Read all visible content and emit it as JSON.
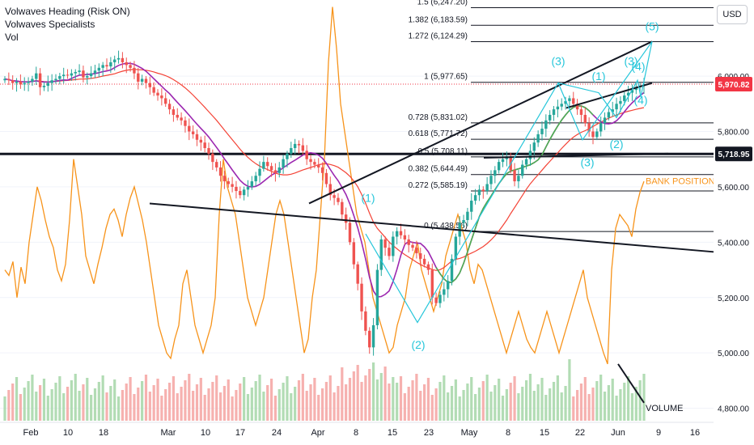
{
  "legend": {
    "line1": "Volwaves Heading (Risk ON)",
    "line2": "Volwaves Specialists",
    "line3": "Vol"
  },
  "currency": "USD",
  "colors": {
    "up": "#26a69a",
    "down": "#ef5350",
    "ma_fast": "#4caf50",
    "ma_slow": "#f44336",
    "ma_mid": "#9c27b0",
    "vol_line": "#f7931a",
    "wave": "#26c6da",
    "price_tag": "#f23645",
    "level_tag": "#131722"
  },
  "chart_data": {
    "type": "candlestick",
    "symbol_price": 5970.82,
    "y_axis": {
      "ticks": [
        "6,000.00",
        "5,800.00",
        "5,600.00",
        "5,400.00",
        "5,200.00",
        "5,000.00",
        "4,800.00"
      ],
      "tick_values": [
        6000,
        5800,
        5600,
        5400,
        5200,
        5000,
        4800
      ],
      "ylim": [
        4755,
        6275
      ]
    },
    "x_axis": {
      "ticks": [
        "Feb",
        "10",
        "18",
        "Mar",
        "10",
        "17",
        "24",
        "Apr",
        "8",
        "15",
        "23",
        "May",
        "8",
        "15",
        "22",
        "Jun",
        "9",
        "16"
      ]
    },
    "price_tags": [
      {
        "label": "5,970.82",
        "value": 5970.82,
        "style": "red"
      },
      {
        "label": "5,718.95",
        "value": 5718.95,
        "style": "dark"
      }
    ],
    "fib_levels": [
      {
        "label": "1.5 (6,247.20)",
        "value": 6247.2
      },
      {
        "label": "1.382 (6,183.59)",
        "value": 6183.59
      },
      {
        "label": "1.272 (6,124.29)",
        "value": 6124.29
      },
      {
        "label": "1 (5,977.65)",
        "value": 5977.65
      },
      {
        "label": "0.728 (5,831.02)",
        "value": 5831.02
      },
      {
        "label": "0.618 (5,771.72)",
        "value": 5771.72
      },
      {
        "label": "0.5 (5,708.11)",
        "value": 5708.11
      },
      {
        "label": "0.382 (5,644.49)",
        "value": 5644.49
      },
      {
        "label": "0.272 (5,585.19)",
        "value": 5585.19
      },
      {
        "label": "0 (5,438.56)",
        "value": 5438.56
      }
    ],
    "wave_labels": [
      "(1)",
      "(2)",
      "(3)",
      "(1)",
      "(2)",
      "(3)",
      "(4)",
      "(3)",
      "(4)",
      "(5)"
    ],
    "annotations": [
      "BANK POSITIONS",
      "VOLUME"
    ],
    "closes": [
      5990,
      5985,
      5975,
      5980,
      5970,
      5975,
      5980,
      5990,
      6010,
      5960,
      5965,
      5975,
      5985,
      5990,
      6000,
      6005,
      6002,
      6010,
      6015,
      6020,
      5995,
      6000,
      6010,
      6020,
      6030,
      6040,
      6035,
      6050,
      6060,
      6065,
      6050,
      6040,
      6030,
      6010,
      5980,
      5990,
      5975,
      5960,
      5940,
      5930,
      5920,
      5900,
      5880,
      5860,
      5850,
      5840,
      5820,
      5800,
      5790,
      5770,
      5760,
      5740,
      5720,
      5690,
      5670,
      5640,
      5620,
      5610,
      5600,
      5585,
      5570,
      5590,
      5600,
      5620,
      5640,
      5665,
      5690,
      5675,
      5660,
      5650,
      5670,
      5700,
      5720,
      5740,
      5755,
      5750,
      5730,
      5700,
      5690,
      5680,
      5670,
      5650,
      5610,
      5570,
      5560,
      5545,
      5500,
      5470,
      5400,
      5320,
      5250,
      5150,
      5080,
      5020,
      5100,
      5300,
      5410,
      5380,
      5350,
      5420,
      5440,
      5425,
      5410,
      5390,
      5380,
      5360,
      5340,
      5320,
      5300,
      5200,
      5180,
      5210,
      5230,
      5260,
      5340,
      5420,
      5470,
      5480,
      5510,
      5550,
      5570,
      5590,
      5585,
      5610,
      5640,
      5660,
      5690,
      5700,
      5710,
      5660,
      5620,
      5640,
      5680,
      5700,
      5730,
      5760,
      5790,
      5810,
      5840,
      5860,
      5880,
      5890,
      5900,
      5910,
      5920,
      5900,
      5880,
      5860,
      5830,
      5800,
      5780,
      5800,
      5830,
      5850,
      5870,
      5880,
      5900,
      5910,
      5930,
      5940,
      5950,
      5960,
      5965,
      5970.82
    ],
    "volume_line": [
      5300,
      5280,
      5330,
      5200,
      5310,
      5250,
      5400,
      5500,
      5600,
      5550,
      5480,
      5420,
      5380,
      5300,
      5260,
      5320,
      5480,
      5700,
      5600,
      5500,
      5350,
      5300,
      5250,
      5320,
      5380,
      5450,
      5500,
      5520,
      5480,
      5420,
      5500,
      5560,
      5600,
      5540,
      5480,
      5400,
      5300,
      5200,
      5100,
      5050,
      5000,
      4980,
      5050,
      5100,
      5250,
      5300,
      5200,
      5100,
      5050,
      5000,
      5050,
      5100,
      5200,
      5500,
      5700,
      5600,
      5550,
      5500,
      5400,
      5300,
      5200,
      5150,
      5100,
      5150,
      5200,
      5300,
      5400,
      5500,
      5550,
      5500,
      5400,
      5300,
      5200,
      5100,
      5000,
      5050,
      5200,
      5300,
      5500,
      5700,
      6050,
      6250,
      6100,
      5900,
      5800,
      5700,
      5600,
      5500,
      5450,
      5400,
      5300,
      5200,
      5150,
      5100,
      5050,
      5000,
      5020,
      5100,
      5150,
      5200,
      5300,
      5350,
      5400,
      5300,
      5250,
      5200,
      5150,
      5200,
      5250,
      5350,
      5400,
      5450,
      5500,
      5450,
      5400,
      5300,
      5250,
      5320,
      5300,
      5250,
      5200,
      5150,
      5100,
      5050,
      5000,
      5050,
      5100,
      5150,
      5100,
      5050,
      5020,
      5000,
      5050,
      5100,
      5150,
      5100,
      5050,
      5000,
      5050,
      5100,
      5150,
      5200,
      5250,
      5300,
      5200,
      5150,
      5100,
      5050,
      5000,
      4960,
      5300,
      5450,
      5500,
      5480,
      5460,
      5420,
      5520,
      5580,
      5620
    ]
  }
}
